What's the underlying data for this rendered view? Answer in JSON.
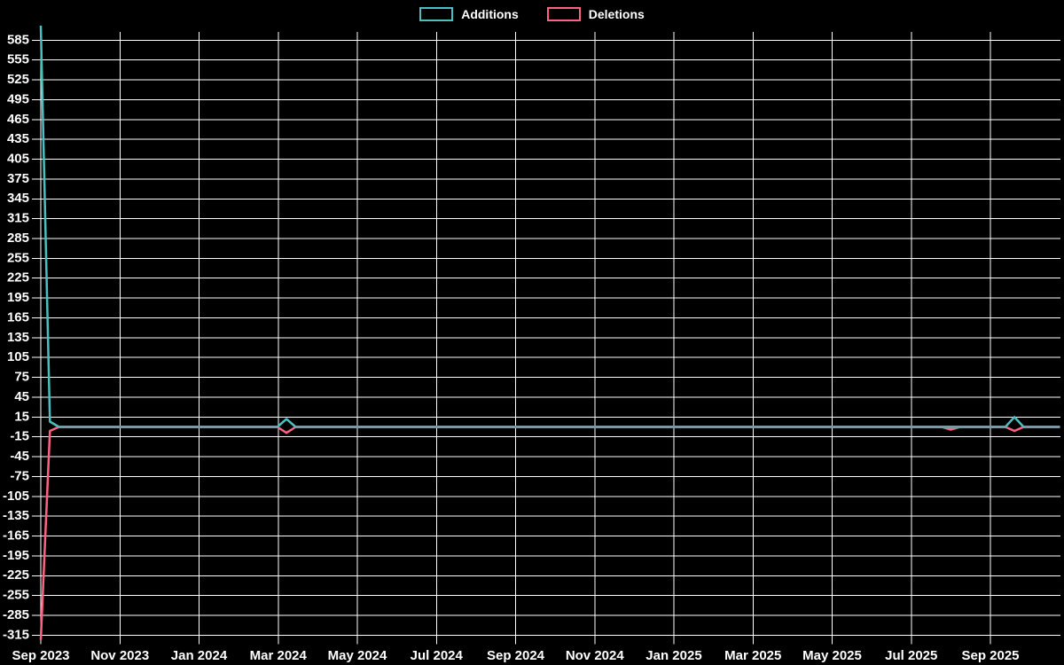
{
  "colors": {
    "background": "#000000",
    "grid": "#ffffff",
    "text": "#ffffff",
    "additions": "#4bc0c0",
    "deletions": "#ff6384",
    "overlap_line": "#7d97a2"
  },
  "legend": {
    "items": [
      {
        "label": "Additions",
        "color": "#4bc0c0"
      },
      {
        "label": "Deletions",
        "color": "#ff6384"
      }
    ]
  },
  "chart_data": {
    "type": "line",
    "title": "",
    "xlabel": "",
    "ylabel": "",
    "legend_position": "top",
    "grid": true,
    "x_tick_labels": [
      "Sep 2023",
      "Nov 2023",
      "Jan 2024",
      "Mar 2024",
      "May 2024",
      "Jul 2024",
      "Sep 2024",
      "Nov 2024",
      "Jan 2025",
      "Mar 2025",
      "May 2025",
      "Jul 2025",
      "Sep 2025"
    ],
    "y_ticks": [
      585,
      555,
      525,
      495,
      465,
      435,
      405,
      375,
      345,
      315,
      285,
      255,
      225,
      195,
      165,
      135,
      105,
      75,
      45,
      15,
      -15,
      -45,
      -75,
      -105,
      -135,
      -165,
      -195,
      -225,
      -255,
      -285,
      -315
    ],
    "y_min": -322,
    "y_max": 607,
    "x_unit": "week",
    "weeks_total": 113,
    "series": [
      {
        "name": "Additions",
        "color": "#4bc0c0",
        "default_value": 0,
        "points": {
          "0": 607,
          "1": 8,
          "27": 12,
          "107": 15
        }
      },
      {
        "name": "Deletions",
        "color": "#ff6384",
        "default_value": 0,
        "points": {
          "0": -322,
          "1": -6,
          "27": -9,
          "100": -4,
          "107": -6
        }
      }
    ],
    "overlap_line_color": "#7d97a2"
  }
}
